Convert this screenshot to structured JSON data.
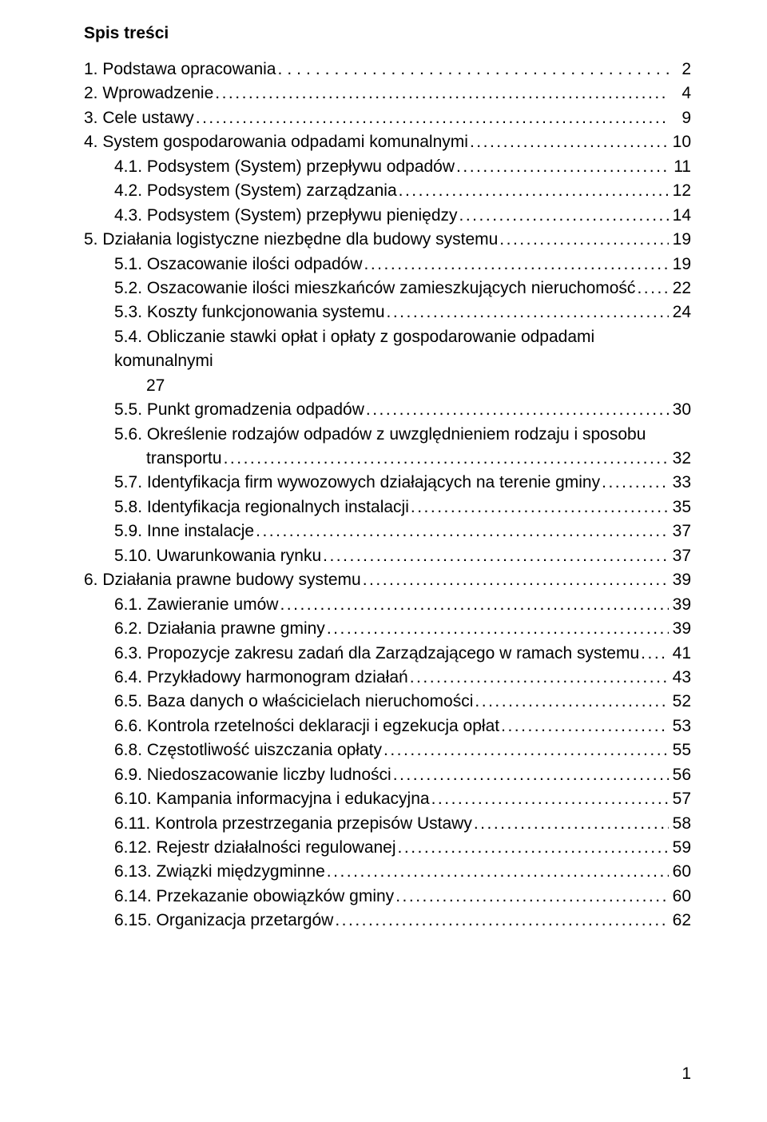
{
  "title": "Spis treści",
  "footer_page": "1",
  "entries": [
    {
      "level": 1,
      "num": "1.",
      "text": "Podstawa opracowania",
      "page": "2",
      "nopad": true,
      "dotstyle": "wide"
    },
    {
      "level": 1,
      "num": "2.",
      "text": "Wprowadzenie",
      "page": "4"
    },
    {
      "level": 1,
      "num": "3.",
      "text": "Cele ustawy",
      "page": "9"
    },
    {
      "level": 1,
      "num": "4.",
      "text": "System gospodarowania odpadami komunalnymi",
      "page": "10"
    },
    {
      "level": 2,
      "num": "4.1.",
      "text": "Podsystem (System) przepływu odpadów",
      "page": "11"
    },
    {
      "level": 2,
      "num": "4.2.",
      "text": "Podsystem (System) zarządzania",
      "page": "12"
    },
    {
      "level": 2,
      "num": "4.3.",
      "text": "Podsystem (System) przepływu pieniędzy",
      "page": "14"
    },
    {
      "level": 1,
      "num": "5.",
      "text": "Działania logistyczne niezbędne dla budowy systemu",
      "page": "19"
    },
    {
      "level": 2,
      "num": "5.1.",
      "text": "Oszacowanie ilości odpadów",
      "page": "19"
    },
    {
      "level": 2,
      "num": "5.2.",
      "text": "Oszacowanie ilości mieszkańców zamieszkujących nieruchomość",
      "page": "22"
    },
    {
      "level": 2,
      "num": "5.3.",
      "text": "Koszty funkcjonowania systemu",
      "page": "24"
    },
    {
      "level": 2,
      "num": "5.4.",
      "text": "Obliczanie stawki opłat i opłaty z gospodarowanie odpadami komunalnymi",
      "page": "27",
      "noDotsMultiline": true
    },
    {
      "level": 2,
      "num": "5.5.",
      "text": "Punkt gromadzenia odpadów",
      "page": "30"
    },
    {
      "level": 2,
      "num": "5.6.",
      "text": "Określenie rodzajów odpadów z uwzględnieniem rodzaju i sposobu",
      "text2": "transportu",
      "page": "32",
      "wrap": true
    },
    {
      "level": 2,
      "num": "5.7.",
      "text": "Identyfikacja firm wywozowych działających na terenie gminy",
      "page": "33"
    },
    {
      "level": 2,
      "num": "5.8.",
      "text": "Identyfikacja regionalnych instalacji",
      "page": "35"
    },
    {
      "level": 2,
      "num": "5.9.",
      "text": "Inne instalacje",
      "page": "37"
    },
    {
      "level": 2,
      "num": "5.10.",
      "text": "Uwarunkowania rynku",
      "page": "37"
    },
    {
      "level": 1,
      "num": "6.",
      "text": "Działania prawne budowy systemu",
      "page": "39"
    },
    {
      "level": 2,
      "num": "6.1.",
      "text": "Zawieranie umów",
      "page": "39"
    },
    {
      "level": 2,
      "num": "6.2.",
      "text": "Działania prawne gminy",
      "page": "39"
    },
    {
      "level": 2,
      "num": "6.3.",
      "text": "Propozycje zakresu zadań dla  Zarządzającego w ramach systemu",
      "page": "41"
    },
    {
      "level": 2,
      "num": "6.4.",
      "text": "Przykładowy harmonogram działań",
      "page": "43"
    },
    {
      "level": 2,
      "num": "6.5.",
      "text": "Baza danych o właścicielach nieruchomości",
      "page": "52"
    },
    {
      "level": 2,
      "num": "6.6.",
      "text": "Kontrola rzetelności deklaracji i egzekucja opłat",
      "page": "53"
    },
    {
      "level": 2,
      "num": "6.8.",
      "text": "Częstotliwość uiszczania opłaty",
      "page": "55"
    },
    {
      "level": 2,
      "num": "6.9.",
      "text": "Niedoszacowanie liczby ludności",
      "page": "56"
    },
    {
      "level": 2,
      "num": "6.10.",
      "text": "Kampania informacyjna i edukacyjna",
      "page": "57"
    },
    {
      "level": 2,
      "num": "6.11.",
      "text": "Kontrola przestrzegania przepisów Ustawy",
      "page": "58"
    },
    {
      "level": 2,
      "num": "6.12.",
      "text": "Rejestr działalności regulowanej",
      "page": "59"
    },
    {
      "level": 2,
      "num": "6.13.",
      "text": "Związki międzygminne",
      "page": "60"
    },
    {
      "level": 2,
      "num": "6.14.",
      "text": "Przekazanie obowiązków gminy",
      "page": "60"
    },
    {
      "level": 2,
      "num": "6.15.",
      "text": "Organizacja przetargów",
      "page": "62"
    }
  ]
}
